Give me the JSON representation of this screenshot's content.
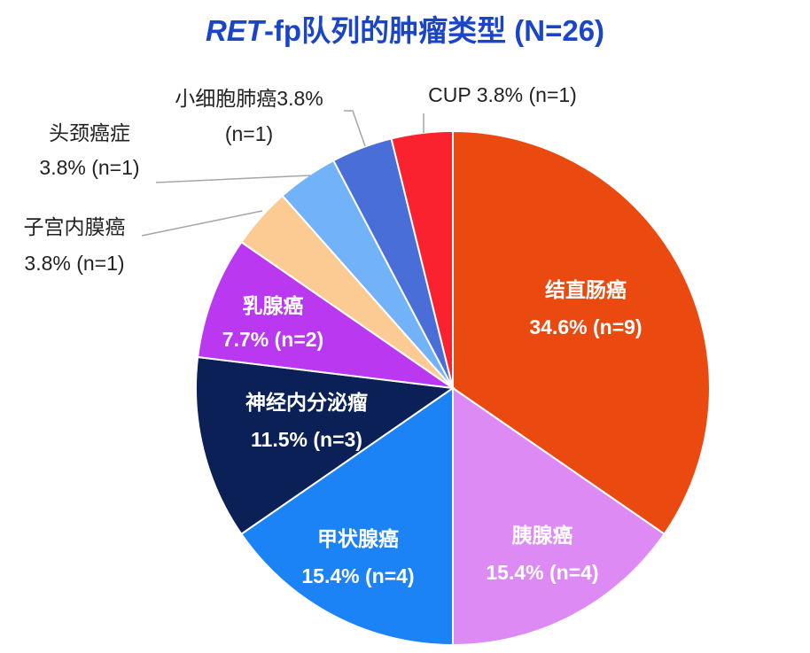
{
  "chart_data": {
    "type": "pie",
    "title_italic": "RET",
    "title_rest": "-fp队列的肿瘤类型 (N=26)",
    "slices": [
      {
        "name": "结直肠癌",
        "pct": "34.6%",
        "n": "(n=9)",
        "value": 9,
        "color": "#ea4a10"
      },
      {
        "name": "胰腺癌",
        "pct": "15.4%",
        "n": "(n=4)",
        "value": 4,
        "color": "#de8af5"
      },
      {
        "name": "甲状腺癌",
        "pct": "15.4%",
        "n": "(n=4)",
        "value": 4,
        "color": "#1b83f5"
      },
      {
        "name": "神经内分泌瘤",
        "pct": "11.5%",
        "n": "(n=3)",
        "value": 3,
        "color": "#0b2057"
      },
      {
        "name": "乳腺癌",
        "pct": "7.7%",
        "n": "(n=2)",
        "value": 2,
        "color": "#ba38f0"
      },
      {
        "name": "子宫内膜癌",
        "pct": "3.8%",
        "n": "(n=1)",
        "value": 1,
        "color": "#fccb93"
      },
      {
        "name": "头颈癌症",
        "pct": "3.8%",
        "n": "(n=1)",
        "value": 1,
        "color": "#72b2f8"
      },
      {
        "name": "小细胞肺癌",
        "pct": "3.8%",
        "n": "(n=1)",
        "value": 1,
        "color": "#4a6ed8"
      },
      {
        "name": "CUP",
        "pct": "3.8%",
        "n": "(n=1)",
        "value": 1,
        "color": "#fb2230"
      }
    ]
  }
}
